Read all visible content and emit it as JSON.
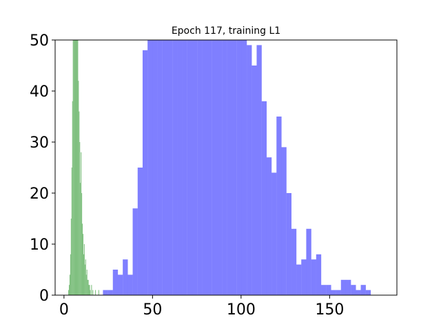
{
  "chart_data": {
    "type": "bar",
    "title": "Epoch 117, training L1",
    "xlabel": "",
    "ylabel": "",
    "xlim": [
      -5,
      188
    ],
    "ylim": [
      0,
      50
    ],
    "x_ticks": [
      0,
      50,
      100,
      150
    ],
    "y_ticks": [
      0,
      10,
      20,
      30,
      40,
      50
    ],
    "grid": false,
    "legend": "none",
    "series": [
      {
        "color": "#7f7fff",
        "bin_width": 2.8,
        "bins": [
          {
            "x": 22.0,
            "y": 1
          },
          {
            "x": 24.8,
            "y": 1
          },
          {
            "x": 27.6,
            "y": 5
          },
          {
            "x": 30.4,
            "y": 4
          },
          {
            "x": 33.2,
            "y": 7
          },
          {
            "x": 36.0,
            "y": 4
          },
          {
            "x": 38.8,
            "y": 17
          },
          {
            "x": 41.6,
            "y": 25
          },
          {
            "x": 44.4,
            "y": 48
          },
          {
            "x": 47.2,
            "y": 50
          },
          {
            "x": 50.0,
            "y": 50
          },
          {
            "x": 52.8,
            "y": 50
          },
          {
            "x": 55.6,
            "y": 50
          },
          {
            "x": 58.4,
            "y": 50
          },
          {
            "x": 61.2,
            "y": 50
          },
          {
            "x": 64.0,
            "y": 50
          },
          {
            "x": 66.8,
            "y": 50
          },
          {
            "x": 69.6,
            "y": 50
          },
          {
            "x": 72.4,
            "y": 50
          },
          {
            "x": 75.2,
            "y": 50
          },
          {
            "x": 78.0,
            "y": 50
          },
          {
            "x": 80.8,
            "y": 50
          },
          {
            "x": 83.6,
            "y": 50
          },
          {
            "x": 86.4,
            "y": 50
          },
          {
            "x": 89.2,
            "y": 50
          },
          {
            "x": 92.0,
            "y": 50
          },
          {
            "x": 94.8,
            "y": 50
          },
          {
            "x": 97.6,
            "y": 50
          },
          {
            "x": 100.4,
            "y": 50
          },
          {
            "x": 103.2,
            "y": 49
          },
          {
            "x": 106.0,
            "y": 45
          },
          {
            "x": 108.8,
            "y": 49
          },
          {
            "x": 111.6,
            "y": 38
          },
          {
            "x": 114.4,
            "y": 27
          },
          {
            "x": 117.2,
            "y": 24
          },
          {
            "x": 120.0,
            "y": 35
          },
          {
            "x": 122.8,
            "y": 29
          },
          {
            "x": 125.6,
            "y": 20
          },
          {
            "x": 128.4,
            "y": 13
          },
          {
            "x": 131.2,
            "y": 6
          },
          {
            "x": 134.0,
            "y": 7
          },
          {
            "x": 136.8,
            "y": 13
          },
          {
            "x": 139.6,
            "y": 7
          },
          {
            "x": 142.4,
            "y": 8
          },
          {
            "x": 145.2,
            "y": 2
          },
          {
            "x": 148.0,
            "y": 2
          },
          {
            "x": 150.8,
            "y": 1
          },
          {
            "x": 153.6,
            "y": 1
          },
          {
            "x": 156.4,
            "y": 3
          },
          {
            "x": 159.2,
            "y": 3
          },
          {
            "x": 162.0,
            "y": 2
          },
          {
            "x": 164.8,
            "y": 1
          },
          {
            "x": 167.6,
            "y": 2
          },
          {
            "x": 170.4,
            "y": 1
          }
        ]
      },
      {
        "color": "#80c080",
        "bin_width": 0.37,
        "bins": [
          {
            "x": 2.4,
            "y": 1
          },
          {
            "x": 2.77,
            "y": 2
          },
          {
            "x": 3.14,
            "y": 4
          },
          {
            "x": 3.51,
            "y": 8
          },
          {
            "x": 3.88,
            "y": 15
          },
          {
            "x": 4.25,
            "y": 25
          },
          {
            "x": 4.62,
            "y": 38
          },
          {
            "x": 4.99,
            "y": 50
          },
          {
            "x": 5.36,
            "y": 50
          },
          {
            "x": 5.73,
            "y": 50
          },
          {
            "x": 6.1,
            "y": 50
          },
          {
            "x": 6.47,
            "y": 50
          },
          {
            "x": 6.84,
            "y": 50
          },
          {
            "x": 7.21,
            "y": 50
          },
          {
            "x": 7.58,
            "y": 50
          },
          {
            "x": 7.95,
            "y": 42
          },
          {
            "x": 8.32,
            "y": 36
          },
          {
            "x": 8.69,
            "y": 30
          },
          {
            "x": 9.06,
            "y": 22
          },
          {
            "x": 9.43,
            "y": 28
          },
          {
            "x": 9.8,
            "y": 20
          },
          {
            "x": 10.17,
            "y": 14
          },
          {
            "x": 10.54,
            "y": 12
          },
          {
            "x": 10.91,
            "y": 8
          },
          {
            "x": 11.28,
            "y": 10
          },
          {
            "x": 11.65,
            "y": 6
          },
          {
            "x": 12.02,
            "y": 7
          },
          {
            "x": 12.39,
            "y": 4
          },
          {
            "x": 12.76,
            "y": 5
          },
          {
            "x": 13.13,
            "y": 3
          },
          {
            "x": 13.5,
            "y": 3
          },
          {
            "x": 13.87,
            "y": 2
          },
          {
            "x": 14.24,
            "y": 2
          },
          {
            "x": 14.61,
            "y": 1
          },
          {
            "x": 15.35,
            "y": 2
          },
          {
            "x": 16.09,
            "y": 1
          },
          {
            "x": 17.57,
            "y": 1
          },
          {
            "x": 19.42,
            "y": 1
          }
        ]
      }
    ]
  }
}
